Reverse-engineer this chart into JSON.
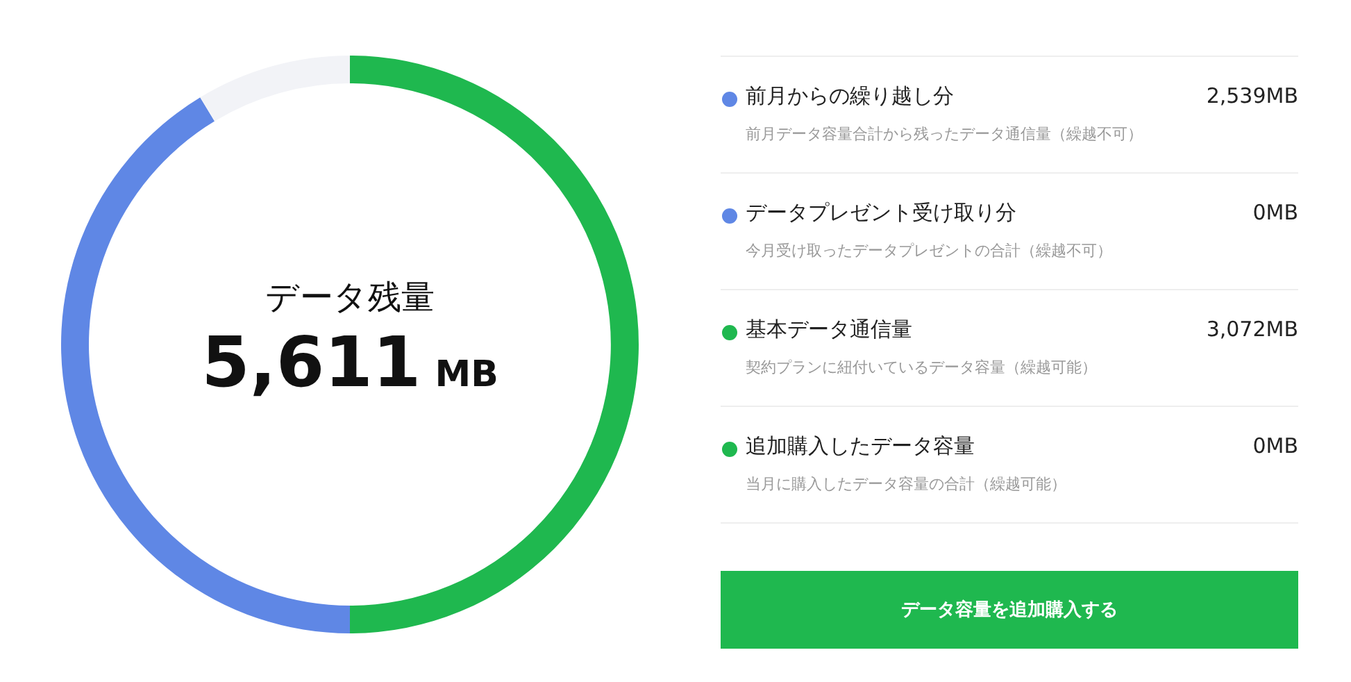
{
  "chart_data": {
    "type": "donut",
    "categories": [
      "前月からの繰り越し分",
      "データプレゼント受け取り分",
      "基本データ通信量",
      "追加購入したデータ容量",
      null
    ],
    "values": [
      2539,
      0,
      3072,
      0,
      533
    ],
    "colors": [
      "#5f87e5",
      "#5f87e5",
      "#1fb84f",
      "#1fb84f",
      "#f2f3f7"
    ],
    "value_labels": [
      "2,539MB",
      "0MB",
      "3,072MB",
      "0MB",
      null
    ],
    "legend": "right",
    "annotations": [
      "データ残量",
      "5,611 MB",
      "前月データ容量合計から残ったデータ通信量（繰越不可）",
      "今月受け取ったデータプレゼントの合計（繰越不可）",
      "契約プランに紐付いているデータ容量（繰越可能）",
      "当月に購入したデータ容量の合計（繰越可能）",
      "データ容量を追加購入する"
    ]
  }
}
